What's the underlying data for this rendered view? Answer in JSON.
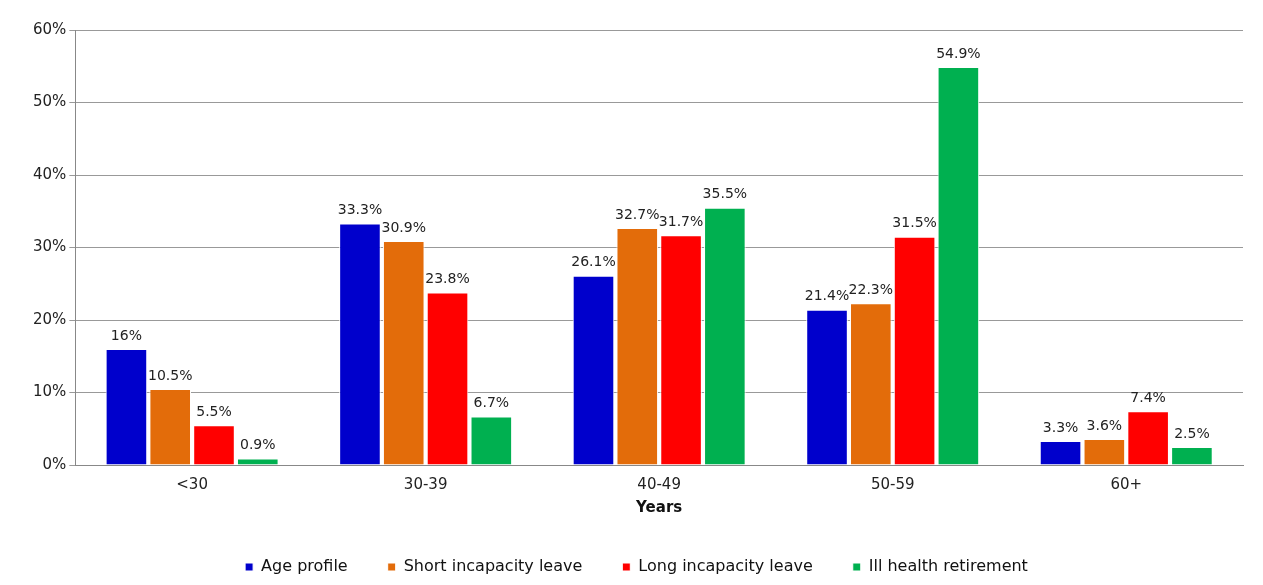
{
  "chart_data": {
    "type": "bar",
    "xlabel": "Years",
    "categories": [
      "<30",
      "30-39",
      "40-49",
      "50-59",
      "60+"
    ],
    "series": [
      {
        "name": "Age profile",
        "color": "#0000cc",
        "values": [
          16,
          33.3,
          26.1,
          21.4,
          3.3
        ],
        "value_labels": [
          "16%",
          "33.3%",
          "26.1%",
          "21.4%",
          "3.3%"
        ]
      },
      {
        "name": "Short incapacity leave",
        "color": "#e36c0a",
        "values": [
          10.5,
          30.9,
          32.7,
          22.3,
          3.6
        ],
        "value_labels": [
          "10.5%",
          "30.9%",
          "32.7%",
          "22.3%",
          "3.6%"
        ]
      },
      {
        "name": "Long incapacity leave",
        "color": "#ff0000",
        "values": [
          5.5,
          23.8,
          31.7,
          31.5,
          7.4
        ],
        "value_labels": [
          "5.5%",
          "23.8%",
          "31.7%",
          "31.5%",
          "7.4%"
        ]
      },
      {
        "name": "Ill health retirement",
        "color": "#00b050",
        "values": [
          0.9,
          6.7,
          35.5,
          54.9,
          2.5
        ],
        "value_labels": [
          "0.9%",
          "6.7%",
          "35.5%",
          "54.9%",
          "2.5%"
        ]
      }
    ],
    "ylim": [
      0,
      60
    ],
    "yticks": [
      {
        "value": 0,
        "label": "0%"
      },
      {
        "value": 10,
        "label": "10%"
      },
      {
        "value": 20,
        "label": "20%"
      },
      {
        "value": 30,
        "label": "30%"
      },
      {
        "value": 40,
        "label": "40%"
      },
      {
        "value": 50,
        "label": "50%"
      },
      {
        "value": 60,
        "label": "60%"
      }
    ],
    "grid": "y",
    "legend": "bottom"
  }
}
